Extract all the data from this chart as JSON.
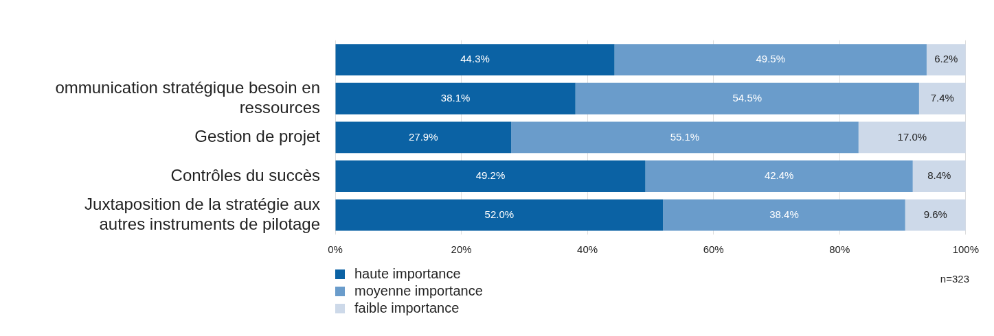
{
  "chart_data": {
    "type": "bar",
    "orientation": "horizontal",
    "stacked": true,
    "categories": [
      null,
      "ommunication stratégique besoin en ressources",
      "Gestion de projet",
      "Contrôles du succès",
      "Juxtaposition de la stratégie aux autres instruments de pilotage"
    ],
    "series": [
      {
        "name": "haute importance",
        "color": "#0b62a4",
        "values": [
          44.3,
          38.1,
          27.9,
          49.2,
          52.0
        ],
        "value_labels": [
          "44.3%",
          "38.1%",
          "27.9%",
          "49.2%",
          "52.0%"
        ]
      },
      {
        "name": "moyenne importance",
        "color": "#6a9ccb",
        "values": [
          49.5,
          54.5,
          55.1,
          42.4,
          38.4
        ],
        "value_labels": [
          "49.5%",
          "54.5%",
          "55.1%",
          "42.4%",
          "38.4%"
        ]
      },
      {
        "name": "faible importance",
        "color": "#cdd9e9",
        "values": [
          6.2,
          7.4,
          17.0,
          8.4,
          9.6
        ],
        "value_labels": [
          "6.2%",
          "7.4%",
          "17.0%",
          "8.4%",
          "9.6%"
        ]
      }
    ],
    "xlim": [
      0,
      100
    ],
    "xticks": [
      {
        "value": 0,
        "label": "0%"
      },
      {
        "value": 20,
        "label": "20%"
      },
      {
        "value": 40,
        "label": "40%"
      },
      {
        "value": 60,
        "label": "60%"
      },
      {
        "value": 80,
        "label": "80%"
      },
      {
        "value": 100,
        "label": "100%"
      }
    ],
    "grid": "x",
    "legend": "bottom left",
    "annotations": [
      "n=323"
    ]
  }
}
